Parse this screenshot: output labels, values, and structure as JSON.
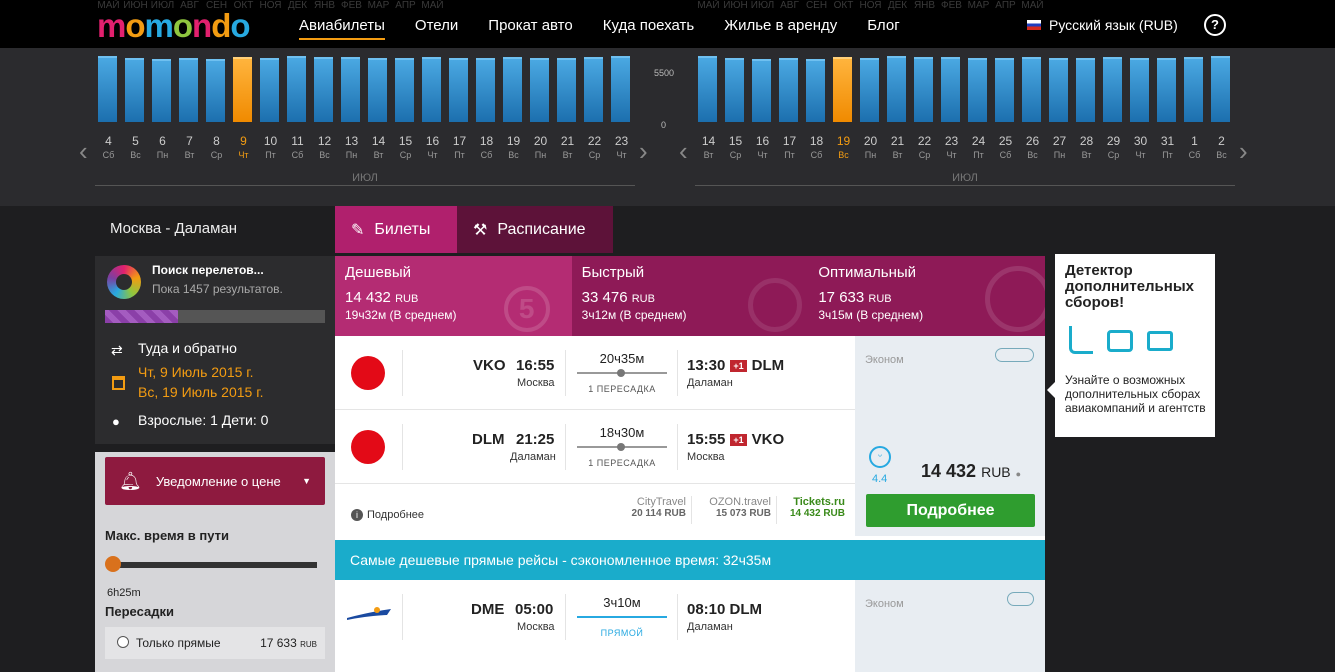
{
  "header": {
    "logo": "momondo",
    "nav": [
      "Авиабилеты",
      "Отели",
      "Прокат авто",
      "Куда поехать",
      "Жилье в аренду",
      "Блог"
    ],
    "language": "Русский язык (RUB)",
    "help_icon": "?"
  },
  "months_strip_left": [
    "МАЙ",
    "ИЮН",
    "ИЮЛ",
    "АВГ",
    "СЕН",
    "ОКТ",
    "НОЯ",
    "ДЕК",
    "ЯНВ",
    "ФЕВ",
    "МАР",
    "АПР",
    "МАЙ"
  ],
  "months_strip_right": [
    "МАЙ",
    "ИЮН",
    "ИЮЛ",
    "АВГ",
    "СЕН",
    "ОКТ",
    "НОЯ",
    "ДЕК",
    "ЯНВ",
    "ФЕВ",
    "МАР",
    "АПР",
    "МАЙ"
  ],
  "calendar": {
    "axis_top": "5500",
    "axis_bottom": "0",
    "outbound": {
      "month": "ИЮЛ",
      "days": [
        {
          "d": "4",
          "w": "Сб"
        },
        {
          "d": "5",
          "w": "Вс"
        },
        {
          "d": "6",
          "w": "Пн"
        },
        {
          "d": "7",
          "w": "Вт"
        },
        {
          "d": "8",
          "w": "Ср"
        },
        {
          "d": "9",
          "w": "Чт",
          "selected": true
        },
        {
          "d": "10",
          "w": "Пт"
        },
        {
          "d": "11",
          "w": "Сб"
        },
        {
          "d": "12",
          "w": "Вс"
        },
        {
          "d": "13",
          "w": "Пн"
        },
        {
          "d": "14",
          "w": "Вт"
        },
        {
          "d": "15",
          "w": "Ср"
        },
        {
          "d": "16",
          "w": "Чт"
        },
        {
          "d": "17",
          "w": "Пт"
        },
        {
          "d": "18",
          "w": "Сб"
        },
        {
          "d": "19",
          "w": "Вс"
        },
        {
          "d": "20",
          "w": "Пн"
        },
        {
          "d": "21",
          "w": "Вт"
        },
        {
          "d": "22",
          "w": "Ср"
        },
        {
          "d": "23",
          "w": "Чт"
        }
      ]
    },
    "return": {
      "month": "ИЮЛ",
      "days": [
        {
          "d": "14",
          "w": "Вт"
        },
        {
          "d": "15",
          "w": "Ср"
        },
        {
          "d": "16",
          "w": "Чт"
        },
        {
          "d": "17",
          "w": "Пт"
        },
        {
          "d": "18",
          "w": "Сб"
        },
        {
          "d": "19",
          "w": "Вс",
          "selected": true
        },
        {
          "d": "20",
          "w": "Пн"
        },
        {
          "d": "21",
          "w": "Вт"
        },
        {
          "d": "22",
          "w": "Ср"
        },
        {
          "d": "23",
          "w": "Чт"
        },
        {
          "d": "24",
          "w": "Пт"
        },
        {
          "d": "25",
          "w": "Сб"
        },
        {
          "d": "26",
          "w": "Вс"
        },
        {
          "d": "27",
          "w": "Пн"
        },
        {
          "d": "28",
          "w": "Вт"
        },
        {
          "d": "29",
          "w": "Ср"
        },
        {
          "d": "30",
          "w": "Чт"
        },
        {
          "d": "31",
          "w": "Пт"
        },
        {
          "d": "1",
          "w": "Сб"
        },
        {
          "d": "2",
          "w": "Вс"
        }
      ]
    }
  },
  "sidebar": {
    "route": "Москва - Даламан",
    "searching_title": "Поиск перелетов...",
    "searching_sub": "Пока 1457 результатов.",
    "search_progress": 0.33,
    "trip_type": "Туда и обратно",
    "date_out": "Чт, 9 Июль 2015 г.",
    "date_back": "Вс, 19 Июль 2015 г.",
    "passengers": "Взрослые: 1 Дети: 0",
    "price_alert": "Уведомление о цене",
    "max_time_label": "Макс. время в пути",
    "max_time_value": "6h25m",
    "stops_label": "Пересадки",
    "direct_only": "Только прямые",
    "direct_price": "17 633",
    "direct_currency": "RUB"
  },
  "tabs": [
    "Билеты",
    "Расписание"
  ],
  "sorts": [
    {
      "label": "Дешевый",
      "price": "14 432",
      "currency": "RUB",
      "duration": "19ч32м (В среднем)",
      "color": "#b42c73"
    },
    {
      "label": "Быстрый",
      "price": "33 476",
      "currency": "RUB",
      "duration": "3ч12м (В среднем)",
      "color": "#8e1a57"
    },
    {
      "label": "Оптимальный",
      "price": "17 633",
      "currency": "RUB",
      "duration": "3ч15м (В среднем)",
      "color": "#8e1a57"
    }
  ],
  "result1": {
    "leg1": {
      "from_code": "VKO",
      "from_time": "16:55",
      "from_city": "Москва",
      "duration": "20ч35м",
      "stops": "1 ПЕРЕСАДКА",
      "to_time": "13:30",
      "plus": "+1",
      "to_code": "DLM",
      "to_city": "Даламан"
    },
    "leg2": {
      "from_code": "DLM",
      "from_time": "21:25",
      "from_city": "Даламан",
      "duration": "18ч30м",
      "stops": "1 ПЕРЕСАДКА",
      "to_time": "15:55",
      "plus": "+1",
      "to_code": "VKO",
      "to_city": "Москва"
    },
    "cabin": "Эконом",
    "rating": "4.4",
    "price": "14 432",
    "currency": "RUB",
    "more_info": "Подробнее",
    "providers": [
      {
        "name": "CityTravel",
        "price": "20 114 RUB"
      },
      {
        "name": "OZON.travel",
        "price": "15 073 RUB"
      },
      {
        "name": "Tickets.ru",
        "price": "14 432 RUB"
      }
    ],
    "button": "Подробнее"
  },
  "banner": "Самые дешевые прямые рейсы - сэкономленное время: 32ч35м",
  "result2": {
    "from_code": "DME",
    "from_time": "05:00",
    "from_city": "Москва",
    "duration": "3ч10м",
    "stops": "ПРЯМОЙ",
    "to_time": "08:10",
    "to_code": "DLM",
    "to_city": "Даламан",
    "cabin": "Эконом"
  },
  "detector": {
    "title": "Детектор дополнительных сборов!",
    "text": "Узнайте о возможных дополнительных сборах авиакомпаний и агентств"
  }
}
